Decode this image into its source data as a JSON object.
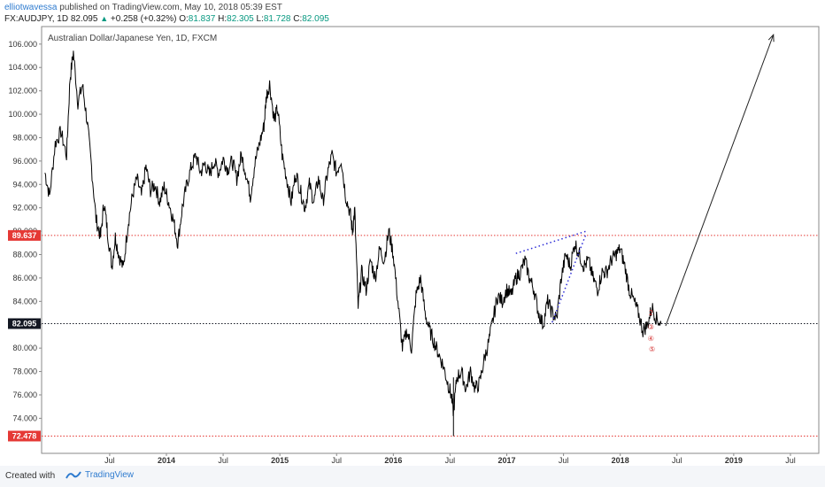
{
  "header": {
    "username": "elliotwavessa",
    "published_text": "published on TradingView.com, May 10, 2018 05:39 EST",
    "symbol": "FX:AUDJPY, 1D",
    "last": "82.095",
    "change_arrow": "▲",
    "change": "+0.258 (+0.32%)",
    "open_label": "O:",
    "open": "81.837",
    "high_label": "H:",
    "high": "82.305",
    "low_label": "L:",
    "low": "81.728",
    "close_label": "C:",
    "close": "82.095"
  },
  "footer": {
    "created_with": "Created with",
    "brand": "TradingView"
  },
  "colors": {
    "candles": "#000000",
    "level_line": "#e53935",
    "price_line": "#131722",
    "wedge": "#2b2bd6",
    "wave_labels": "#d32f2f",
    "arrow": "#222222"
  },
  "chart_data": {
    "type": "line",
    "title": "Australian Dollar/Japanese Yen, 1D, FXCM",
    "xlabel": "",
    "ylabel": "",
    "ylim": [
      71.0,
      107.5
    ],
    "y_ticks": [
      "74.000",
      "76.000",
      "78.000",
      "80.000",
      "82.000",
      "84.000",
      "86.000",
      "88.000",
      "90.000",
      "92.000",
      "94.000",
      "96.000",
      "98.000",
      "100.000",
      "102.000",
      "104.000",
      "106.000"
    ],
    "y_tick_values": [
      74,
      76,
      78,
      80,
      82,
      84,
      86,
      88,
      90,
      92,
      94,
      96,
      98,
      100,
      102,
      104,
      106
    ],
    "x_ticks": [
      {
        "label": "Jul",
        "t": 2013.5
      },
      {
        "label": "2014",
        "t": 2014.0
      },
      {
        "label": "Jul",
        "t": 2014.5
      },
      {
        "label": "2015",
        "t": 2015.0
      },
      {
        "label": "Jul",
        "t": 2015.5
      },
      {
        "label": "2016",
        "t": 2016.0
      },
      {
        "label": "Jul",
        "t": 2016.5
      },
      {
        "label": "2017",
        "t": 2017.0
      },
      {
        "label": "Jul",
        "t": 2017.5
      },
      {
        "label": "2018",
        "t": 2018.0
      },
      {
        "label": "Jul",
        "t": 2018.5
      },
      {
        "label": "2019",
        "t": 2019.0
      },
      {
        "label": "Jul",
        "t": 2019.5
      }
    ],
    "x_range": [
      2012.9,
      2019.75
    ],
    "series": [
      {
        "values": [
          [
            2012.93,
            95.0
          ],
          [
            2012.97,
            93.0
          ],
          [
            2013.02,
            97.5
          ],
          [
            2013.07,
            98.5
          ],
          [
            2013.12,
            96.5
          ],
          [
            2013.15,
            103.0
          ],
          [
            2013.18,
            105.3
          ],
          [
            2013.22,
            101.0
          ],
          [
            2013.26,
            102.5
          ],
          [
            2013.3,
            99.5
          ],
          [
            2013.34,
            95.5
          ],
          [
            2013.38,
            91.0
          ],
          [
            2013.42,
            89.5
          ],
          [
            2013.45,
            92.5
          ],
          [
            2013.48,
            90.0
          ],
          [
            2013.52,
            87.0
          ],
          [
            2013.55,
            89.5
          ],
          [
            2013.58,
            88.0
          ],
          [
            2013.62,
            86.8
          ],
          [
            2013.66,
            90.5
          ],
          [
            2013.7,
            93.0
          ],
          [
            2013.74,
            94.5
          ],
          [
            2013.78,
            93.0
          ],
          [
            2013.82,
            95.5
          ],
          [
            2013.86,
            93.5
          ],
          [
            2013.9,
            94.0
          ],
          [
            2013.94,
            92.5
          ],
          [
            2013.98,
            93.8
          ],
          [
            2014.02,
            92.5
          ],
          [
            2014.06,
            91.0
          ],
          [
            2014.1,
            89.0
          ],
          [
            2014.14,
            92.0
          ],
          [
            2014.18,
            94.0
          ],
          [
            2014.22,
            95.5
          ],
          [
            2014.26,
            96.5
          ],
          [
            2014.3,
            95.0
          ],
          [
            2014.34,
            95.8
          ],
          [
            2014.38,
            94.8
          ],
          [
            2014.42,
            96.0
          ],
          [
            2014.46,
            95.0
          ],
          [
            2014.5,
            96.2
          ],
          [
            2014.54,
            95.3
          ],
          [
            2014.58,
            96.0
          ],
          [
            2014.62,
            94.5
          ],
          [
            2014.66,
            96.5
          ],
          [
            2014.7,
            95.0
          ],
          [
            2014.74,
            93.0
          ],
          [
            2014.78,
            95.8
          ],
          [
            2014.82,
            97.5
          ],
          [
            2014.86,
            99.0
          ],
          [
            2014.88,
            101.5
          ],
          [
            2014.91,
            102.6
          ],
          [
            2014.95,
            99.5
          ],
          [
            2014.98,
            100.5
          ],
          [
            2015.02,
            96.5
          ],
          [
            2015.06,
            94.5
          ],
          [
            2015.1,
            92.5
          ],
          [
            2015.14,
            95.0
          ],
          [
            2015.18,
            93.5
          ],
          [
            2015.22,
            92.0
          ],
          [
            2015.26,
            94.0
          ],
          [
            2015.3,
            92.5
          ],
          [
            2015.34,
            94.5
          ],
          [
            2015.38,
            92.5
          ],
          [
            2015.42,
            95.0
          ],
          [
            2015.46,
            96.5
          ],
          [
            2015.5,
            95.0
          ],
          [
            2015.54,
            96.2
          ],
          [
            2015.58,
            93.0
          ],
          [
            2015.62,
            91.5
          ],
          [
            2015.64,
            90.0
          ],
          [
            2015.66,
            91.8
          ],
          [
            2015.69,
            83.5
          ],
          [
            2015.72,
            86.5
          ],
          [
            2015.76,
            85.0
          ],
          [
            2015.8,
            87.5
          ],
          [
            2015.84,
            86.0
          ],
          [
            2015.88,
            88.5
          ],
          [
            2015.92,
            87.5
          ],
          [
            2015.96,
            90.0
          ],
          [
            2016.0,
            88.0
          ],
          [
            2016.04,
            84.0
          ],
          [
            2016.08,
            80.0
          ],
          [
            2016.12,
            81.5
          ],
          [
            2016.16,
            80.0
          ],
          [
            2016.2,
            84.5
          ],
          [
            2016.24,
            86.0
          ],
          [
            2016.28,
            83.0
          ],
          [
            2016.32,
            81.5
          ],
          [
            2016.36,
            80.5
          ],
          [
            2016.4,
            79.5
          ],
          [
            2016.44,
            78.5
          ],
          [
            2016.48,
            77.0
          ],
          [
            2016.51,
            76.0
          ],
          [
            2016.53,
            74.5
          ],
          [
            2016.56,
            77.5
          ],
          [
            2016.6,
            78.0
          ],
          [
            2016.64,
            76.5
          ],
          [
            2016.68,
            78.0
          ],
          [
            2016.72,
            76.5
          ],
          [
            2016.76,
            77.0
          ],
          [
            2016.8,
            79.0
          ],
          [
            2016.84,
            80.5
          ],
          [
            2016.88,
            82.5
          ],
          [
            2016.92,
            84.5
          ],
          [
            2016.96,
            84.0
          ],
          [
            2017.0,
            85.0
          ],
          [
            2017.04,
            84.5
          ],
          [
            2017.08,
            86.0
          ],
          [
            2017.12,
            86.5
          ],
          [
            2017.16,
            87.5
          ],
          [
            2017.2,
            86.0
          ],
          [
            2017.24,
            85.0
          ],
          [
            2017.28,
            83.0
          ],
          [
            2017.32,
            82.0
          ],
          [
            2017.36,
            84.0
          ],
          [
            2017.4,
            83.0
          ],
          [
            2017.44,
            82.5
          ],
          [
            2017.48,
            86.0
          ],
          [
            2017.52,
            88.0
          ],
          [
            2017.56,
            87.0
          ],
          [
            2017.6,
            89.0
          ],
          [
            2017.64,
            88.0
          ],
          [
            2017.68,
            87.0
          ],
          [
            2017.72,
            87.5
          ],
          [
            2017.76,
            86.0
          ],
          [
            2017.8,
            85.0
          ],
          [
            2017.84,
            86.5
          ],
          [
            2017.88,
            86.5
          ],
          [
            2017.92,
            87.5
          ],
          [
            2017.96,
            88.0
          ],
          [
            2018.0,
            88.5
          ],
          [
            2018.04,
            87.0
          ],
          [
            2018.08,
            85.0
          ],
          [
            2018.12,
            84.0
          ],
          [
            2018.16,
            83.0
          ],
          [
            2018.2,
            81.5
          ],
          [
            2018.24,
            82.0
          ],
          [
            2018.28,
            83.5
          ],
          [
            2018.32,
            82.5
          ],
          [
            2018.36,
            82.1
          ]
        ]
      }
    ],
    "horizontal_levels": [
      {
        "value": 89.637,
        "label": "89.637",
        "style": "dotted",
        "color": "#e53935"
      },
      {
        "value": 82.095,
        "label": "82.095",
        "style": "dotted",
        "color": "#131722"
      },
      {
        "value": 72.478,
        "label": "72.478",
        "style": "dotted",
        "color": "#e53935"
      }
    ],
    "drawings": {
      "wedge_upper": [
        [
          2017.08,
          88.1
        ],
        [
          2017.7,
          90.0
        ]
      ],
      "wedge_lower": [
        [
          2017.4,
          82.2
        ],
        [
          2017.7,
          89.8
        ]
      ],
      "forecast_arrow": [
        [
          2018.4,
          81.9
        ],
        [
          2019.35,
          106.8
        ]
      ],
      "wave_labels": [
        {
          "text": "2",
          "t": 2018.27,
          "v": 82.8
        },
        {
          "text": "③",
          "t": 2018.27,
          "v": 81.6
        },
        {
          "text": "④",
          "t": 2018.27,
          "v": 80.6
        },
        {
          "text": "⑤",
          "t": 2018.28,
          "v": 79.7
        }
      ]
    },
    "grid": false,
    "legend": "none"
  }
}
